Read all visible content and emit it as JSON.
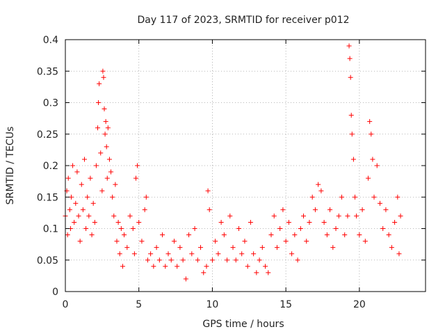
{
  "chart_data": {
    "type": "scatter",
    "title": "Day 117 of 2023, SRMTID for receiver p012",
    "xlabel": "GPS time / hours",
    "ylabel": "SRMTID / TECUs",
    "xlim": [
      0,
      24.5
    ],
    "ylim": [
      0,
      0.4
    ],
    "xticks": [
      0,
      5,
      10,
      15,
      20
    ],
    "xtick_labels": [
      "0",
      "5",
      "10",
      "15",
      "20"
    ],
    "yticks": [
      0,
      0.05,
      0.1,
      0.15,
      0.2,
      0.25,
      0.3,
      0.35,
      0.4
    ],
    "ytick_labels": [
      "0",
      "0.05",
      "0.1",
      "0.15",
      "0.2",
      "0.25",
      "0.3",
      "0.35",
      "0.4"
    ],
    "grid": true,
    "marker": "+",
    "color": "#ff0000",
    "series": [
      {
        "name": "p012",
        "points": [
          [
            0.0,
            0.12
          ],
          [
            0.1,
            0.16
          ],
          [
            0.15,
            0.09
          ],
          [
            0.2,
            0.18
          ],
          [
            0.3,
            0.13
          ],
          [
            0.35,
            0.1
          ],
          [
            0.4,
            0.15
          ],
          [
            0.5,
            0.2
          ],
          [
            0.6,
            0.11
          ],
          [
            0.7,
            0.14
          ],
          [
            0.8,
            0.19
          ],
          [
            0.9,
            0.12
          ],
          [
            1.0,
            0.08
          ],
          [
            1.1,
            0.17
          ],
          [
            1.2,
            0.13
          ],
          [
            1.3,
            0.21
          ],
          [
            1.4,
            0.1
          ],
          [
            1.5,
            0.15
          ],
          [
            1.6,
            0.12
          ],
          [
            1.7,
            0.18
          ],
          [
            1.8,
            0.09
          ],
          [
            1.9,
            0.14
          ],
          [
            2.0,
            0.11
          ],
          [
            2.1,
            0.2
          ],
          [
            2.2,
            0.26
          ],
          [
            2.25,
            0.3
          ],
          [
            2.3,
            0.33
          ],
          [
            2.4,
            0.22
          ],
          [
            2.5,
            0.16
          ],
          [
            2.55,
            0.35
          ],
          [
            2.6,
            0.34
          ],
          [
            2.65,
            0.29
          ],
          [
            2.7,
            0.25
          ],
          [
            2.75,
            0.27
          ],
          [
            2.8,
            0.23
          ],
          [
            2.85,
            0.18
          ],
          [
            2.9,
            0.26
          ],
          [
            3.0,
            0.21
          ],
          [
            3.1,
            0.19
          ],
          [
            3.2,
            0.15
          ],
          [
            3.3,
            0.12
          ],
          [
            3.4,
            0.17
          ],
          [
            3.5,
            0.08
          ],
          [
            3.6,
            0.11
          ],
          [
            3.7,
            0.06
          ],
          [
            3.8,
            0.1
          ],
          [
            3.9,
            0.04
          ],
          [
            4.0,
            0.09
          ],
          [
            4.2,
            0.07
          ],
          [
            4.4,
            0.12
          ],
          [
            4.6,
            0.1
          ],
          [
            4.7,
            0.06
          ],
          [
            4.8,
            0.18
          ],
          [
            4.9,
            0.2
          ],
          [
            5.0,
            0.11
          ],
          [
            5.2,
            0.08
          ],
          [
            5.4,
            0.13
          ],
          [
            5.5,
            0.15
          ],
          [
            5.6,
            0.05
          ],
          [
            5.8,
            0.06
          ],
          [
            6.0,
            0.04
          ],
          [
            6.2,
            0.07
          ],
          [
            6.4,
            0.05
          ],
          [
            6.6,
            0.09
          ],
          [
            6.8,
            0.04
          ],
          [
            7.0,
            0.06
          ],
          [
            7.2,
            0.05
          ],
          [
            7.4,
            0.08
          ],
          [
            7.6,
            0.04
          ],
          [
            7.8,
            0.07
          ],
          [
            8.0,
            0.05
          ],
          [
            8.2,
            0.02
          ],
          [
            8.4,
            0.09
          ],
          [
            8.6,
            0.06
          ],
          [
            8.8,
            0.1
          ],
          [
            9.0,
            0.05
          ],
          [
            9.2,
            0.07
          ],
          [
            9.4,
            0.03
          ],
          [
            9.6,
            0.04
          ],
          [
            9.7,
            0.16
          ],
          [
            9.8,
            0.13
          ],
          [
            10.0,
            0.05
          ],
          [
            10.2,
            0.08
          ],
          [
            10.4,
            0.06
          ],
          [
            10.6,
            0.11
          ],
          [
            10.8,
            0.09
          ],
          [
            11.0,
            0.05
          ],
          [
            11.2,
            0.12
          ],
          [
            11.4,
            0.07
          ],
          [
            11.6,
            0.05
          ],
          [
            11.8,
            0.1
          ],
          [
            12.0,
            0.06
          ],
          [
            12.2,
            0.08
          ],
          [
            12.4,
            0.04
          ],
          [
            12.6,
            0.11
          ],
          [
            12.8,
            0.06
          ],
          [
            13.0,
            0.03
          ],
          [
            13.2,
            0.05
          ],
          [
            13.4,
            0.07
          ],
          [
            13.6,
            0.04
          ],
          [
            13.8,
            0.03
          ],
          [
            14.0,
            0.09
          ],
          [
            14.2,
            0.12
          ],
          [
            14.4,
            0.07
          ],
          [
            14.6,
            0.1
          ],
          [
            14.8,
            0.13
          ],
          [
            15.0,
            0.08
          ],
          [
            15.2,
            0.11
          ],
          [
            15.4,
            0.06
          ],
          [
            15.6,
            0.09
          ],
          [
            15.8,
            0.05
          ],
          [
            16.0,
            0.1
          ],
          [
            16.2,
            0.12
          ],
          [
            16.4,
            0.08
          ],
          [
            16.6,
            0.11
          ],
          [
            16.8,
            0.15
          ],
          [
            17.0,
            0.13
          ],
          [
            17.2,
            0.17
          ],
          [
            17.4,
            0.16
          ],
          [
            17.6,
            0.11
          ],
          [
            17.8,
            0.09
          ],
          [
            18.0,
            0.13
          ],
          [
            18.2,
            0.07
          ],
          [
            18.4,
            0.1
          ],
          [
            18.6,
            0.12
          ],
          [
            18.8,
            0.15
          ],
          [
            19.0,
            0.09
          ],
          [
            19.2,
            0.12
          ],
          [
            19.3,
            0.39
          ],
          [
            19.35,
            0.37
          ],
          [
            19.4,
            0.34
          ],
          [
            19.45,
            0.28
          ],
          [
            19.5,
            0.25
          ],
          [
            19.6,
            0.21
          ],
          [
            19.7,
            0.15
          ],
          [
            19.8,
            0.12
          ],
          [
            20.0,
            0.09
          ],
          [
            20.2,
            0.13
          ],
          [
            20.4,
            0.08
          ],
          [
            20.6,
            0.18
          ],
          [
            20.7,
            0.27
          ],
          [
            20.8,
            0.25
          ],
          [
            20.9,
            0.21
          ],
          [
            21.0,
            0.15
          ],
          [
            21.2,
            0.2
          ],
          [
            21.4,
            0.14
          ],
          [
            21.6,
            0.1
          ],
          [
            21.8,
            0.13
          ],
          [
            22.0,
            0.09
          ],
          [
            22.2,
            0.07
          ],
          [
            22.4,
            0.11
          ],
          [
            22.6,
            0.15
          ],
          [
            22.7,
            0.06
          ],
          [
            22.8,
            0.12
          ]
        ]
      }
    ]
  }
}
